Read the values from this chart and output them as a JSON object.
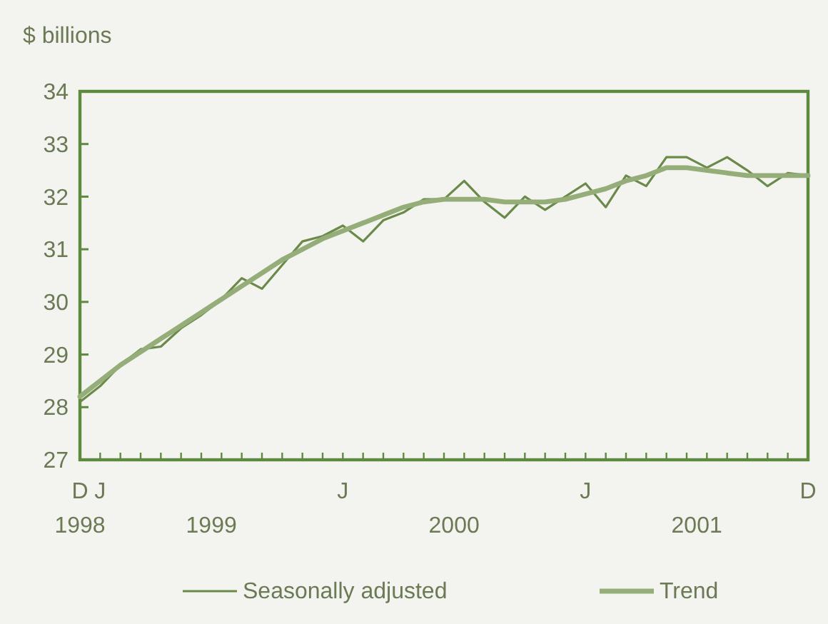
{
  "chart_data": {
    "type": "line",
    "ylabel": "$ billions",
    "categories": [
      "D",
      "J",
      null,
      null,
      null,
      null,
      null,
      null,
      null,
      null,
      null,
      null,
      null,
      "J",
      null,
      null,
      null,
      null,
      null,
      null,
      null,
      null,
      null,
      null,
      null,
      "J",
      null,
      null,
      null,
      null,
      null,
      null,
      null,
      null,
      null,
      null,
      "D"
    ],
    "annotations": [
      "1998",
      "1999",
      "2000",
      "2001"
    ],
    "series": [
      {
        "name": "Seasonally adjusted",
        "color": "#6b8a4a",
        "values": [
          28.1,
          28.4,
          28.8,
          29.1,
          29.15,
          29.5,
          29.75,
          30.05,
          30.45,
          30.25,
          30.7,
          31.15,
          31.25,
          31.45,
          31.15,
          31.55,
          31.7,
          31.95,
          31.95,
          32.3,
          31.9,
          31.6,
          32.0,
          31.75,
          32.0,
          32.25,
          31.8,
          32.4,
          32.2,
          32.75,
          32.75,
          32.55,
          32.75,
          32.5,
          32.2,
          32.45,
          32.4
        ]
      },
      {
        "name": "Trend",
        "color": "#95ad78",
        "values": [
          28.2,
          28.5,
          28.8,
          29.05,
          29.3,
          29.55,
          29.8,
          30.05,
          30.3,
          30.55,
          30.8,
          31.0,
          31.2,
          31.35,
          31.5,
          31.65,
          31.8,
          31.9,
          31.95,
          31.95,
          31.95,
          31.9,
          31.9,
          31.9,
          31.95,
          32.05,
          32.15,
          32.3,
          32.4,
          32.55,
          32.55,
          32.5,
          32.45,
          32.4,
          32.4,
          32.4,
          32.4
        ]
      }
    ],
    "ylim": [
      27,
      34
    ],
    "yticks": [
      27,
      28,
      29,
      30,
      31,
      32,
      33,
      34
    ],
    "grid": false,
    "legend": "bottom",
    "marker": "none",
    "line_style": "solid"
  }
}
